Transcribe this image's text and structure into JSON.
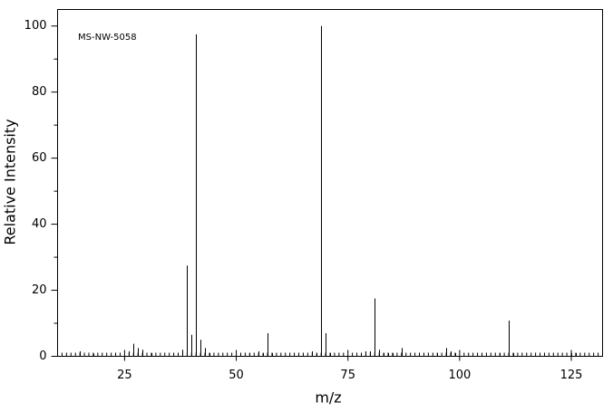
{
  "chart_data": {
    "type": "bar",
    "annotation": "MS-NW-5058",
    "xlabel": "m/z",
    "ylabel": "Relative Intensity",
    "x": [
      15,
      18,
      26,
      27,
      28,
      29,
      31,
      38,
      39,
      40,
      41,
      42,
      43,
      44,
      53,
      55,
      56,
      57,
      58,
      67,
      68,
      69,
      70,
      71,
      79,
      80,
      81,
      82,
      83,
      84,
      85,
      87,
      95,
      97,
      98,
      99,
      109,
      111,
      112,
      125,
      126
    ],
    "values": [
      1.5,
      0.8,
      1.5,
      3.8,
      2.5,
      2,
      1,
      2,
      27.5,
      6.5,
      97.5,
      5,
      2.5,
      1,
      1,
      1.5,
      1,
      7,
      1,
      1.5,
      1,
      100,
      7,
      1,
      1.5,
      1.5,
      17.5,
      2,
      1,
      1,
      1,
      2.5,
      1,
      2.5,
      1.5,
      1,
      1,
      10.8,
      1,
      1,
      1
    ],
    "color": "#000000",
    "xlim": [
      10,
      132
    ],
    "ylim": [
      0,
      105
    ],
    "xticks": [
      25,
      50,
      75,
      100,
      125
    ],
    "yticks": [
      0,
      20,
      40,
      60,
      80,
      100
    ],
    "yminorticks": [
      10,
      30,
      50,
      70,
      90
    ],
    "xminorticks": [
      11,
      12,
      13,
      14,
      15,
      16,
      17,
      18,
      19,
      20,
      21,
      22,
      23,
      24,
      26,
      27,
      28,
      29,
      30,
      31,
      32,
      33,
      34,
      35,
      36,
      37,
      38,
      39,
      40,
      41,
      42,
      43,
      44,
      45,
      46,
      47,
      48,
      49,
      51,
      52,
      53,
      54,
      55,
      56,
      57,
      58,
      59,
      60,
      61,
      62,
      63,
      64,
      65,
      66,
      67,
      68,
      69,
      70,
      71,
      72,
      73,
      74,
      76,
      77,
      78,
      79,
      80,
      81,
      82,
      83,
      84,
      85,
      86,
      87,
      88,
      89,
      90,
      91,
      92,
      93,
      94,
      95,
      96,
      97,
      98,
      99,
      101,
      102,
      103,
      104,
      105,
      106,
      107,
      108,
      109,
      110,
      111,
      112,
      113,
      114,
      115,
      116,
      117,
      118,
      119,
      120,
      121,
      122,
      123,
      124,
      126,
      127,
      128,
      129,
      130,
      131
    ]
  }
}
